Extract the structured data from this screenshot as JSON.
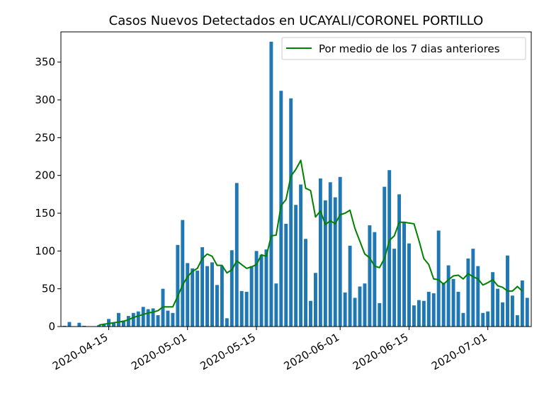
{
  "chart_data": {
    "type": "bar",
    "title": "Casos Nuevos Detectados en UCAYALI/CORONEL PORTILLO",
    "xlabel": "",
    "ylabel": "",
    "ylim": [
      0,
      390
    ],
    "yticks": [
      0,
      50,
      100,
      150,
      200,
      250,
      300,
      350
    ],
    "xticks": [
      "2020-04-15",
      "2020-05-01",
      "2020-05-15",
      "2020-06-01",
      "2020-06-15",
      "2020-07-01"
    ],
    "legend_position": "top-right",
    "colors": {
      "bar": "#1f77b4",
      "line": "#008000"
    },
    "series": [
      {
        "kind": "bar",
        "values": [
          1,
          6,
          0,
          5,
          1,
          0,
          0,
          2,
          3,
          10,
          5,
          18,
          8,
          14,
          18,
          20,
          26,
          23,
          24,
          15,
          50,
          21,
          18,
          108,
          141,
          84,
          77,
          74,
          105,
          80,
          85,
          55,
          80,
          11,
          101,
          190,
          47,
          46,
          80,
          100,
          95,
          102,
          377,
          57,
          312,
          136,
          302,
          161,
          188,
          116,
          34,
          71,
          196,
          167,
          191,
          171,
          198,
          45,
          107,
          38,
          53,
          57,
          134,
          125,
          31,
          185,
          207,
          103,
          175,
          138,
          110,
          28,
          35,
          34,
          46,
          44,
          127,
          58,
          81,
          63,
          46,
          18,
          90,
          103,
          80,
          18,
          20,
          72,
          50,
          32,
          94,
          41,
          15,
          61,
          38
        ]
      },
      {
        "kind": "line",
        "name": "Por medio de los 7 dias anteriores",
        "start_index": 7,
        "values": [
          2,
          3,
          4,
          5,
          6,
          7,
          9,
          12,
          14,
          16,
          18,
          19,
          21,
          26,
          26,
          26,
          40,
          55,
          66,
          73,
          77,
          90,
          96,
          93,
          81,
          81,
          71,
          75,
          87,
          82,
          77,
          79,
          82,
          95,
          93,
          120,
          121,
          160,
          168,
          199,
          208,
          220,
          183,
          180,
          145,
          153,
          135,
          140,
          136,
          148,
          150,
          154,
          130,
          113,
          96,
          91,
          80,
          78,
          90,
          114,
          120,
          138,
          138,
          137,
          136,
          114,
          90,
          82,
          63,
          62,
          56,
          62,
          67,
          68,
          63,
          70,
          66,
          63,
          55,
          58,
          62,
          54,
          52,
          47,
          47,
          53,
          47
        ]
      }
    ]
  }
}
